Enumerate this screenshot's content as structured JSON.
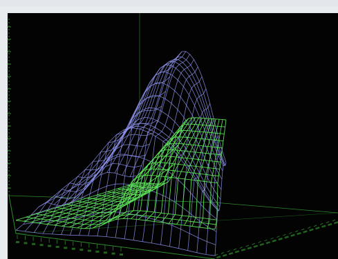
{
  "window": {
    "title": ""
  },
  "viewport": {
    "name": "3d-surface-viewport"
  },
  "chart_data": {
    "type": "surface-3d-wireframe",
    "title": "",
    "xlabel": "",
    "ylabel": "",
    "zlabel": "",
    "grid": true,
    "legend": "none",
    "axis_tick_labels_legible": false,
    "series": [
      {
        "color": "#8c90e8"
      },
      {
        "color": "#5ee85a"
      }
    ],
    "axis_color": "#2f8c2a",
    "background_color": "#020302"
  }
}
